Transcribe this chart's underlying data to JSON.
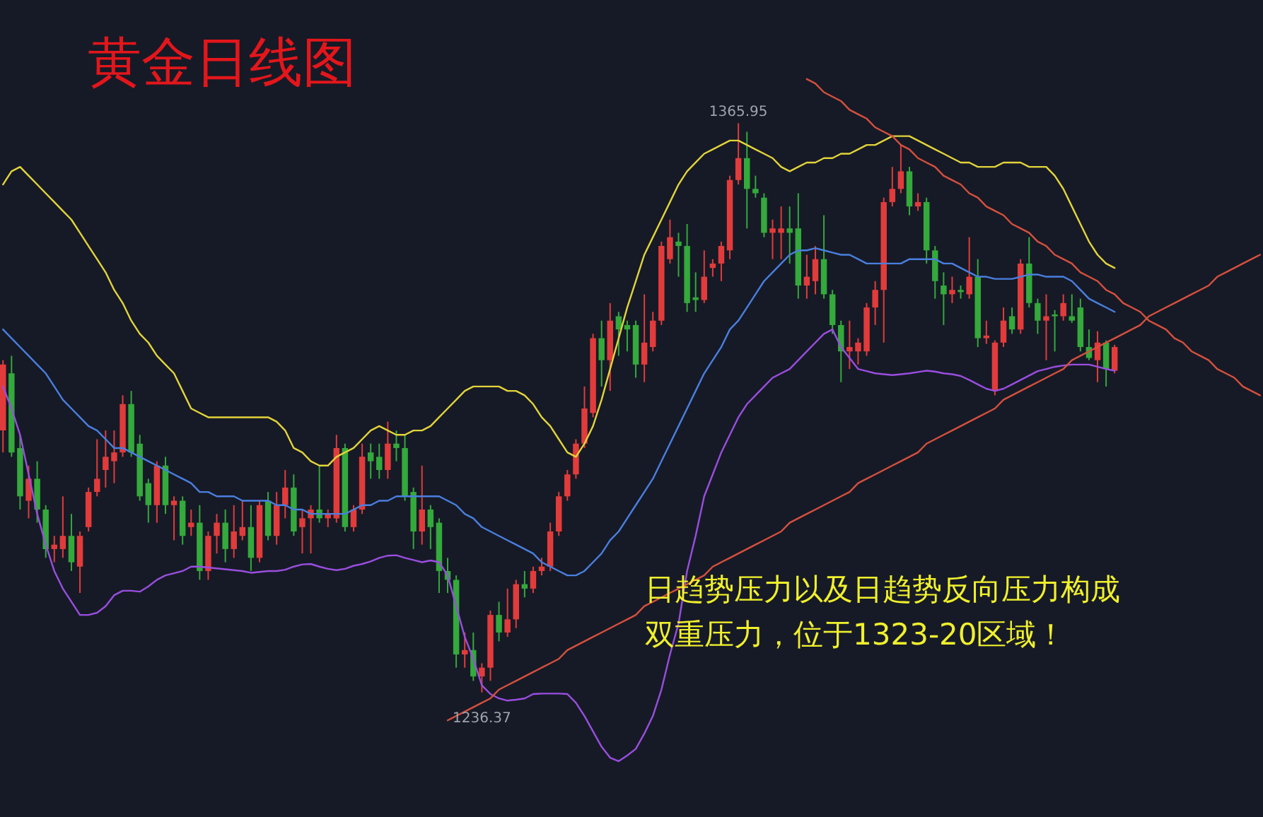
{
  "chart_data": {
    "type": "candlestick",
    "title": "黄金日线图",
    "categories": [
      null,
      null,
      null,
      null,
      null,
      null,
      null,
      null,
      null,
      null,
      null,
      null,
      null,
      null,
      null,
      null,
      null,
      null,
      null,
      null,
      null,
      null,
      null,
      null,
      null,
      null,
      null,
      null,
      null,
      null,
      null,
      null,
      null,
      null,
      null,
      null,
      null,
      null,
      null,
      null,
      null,
      null,
      null,
      null,
      null,
      null,
      null,
      null,
      null,
      null,
      null,
      null,
      null,
      null,
      null,
      null,
      null,
      null,
      null,
      null,
      null,
      null,
      null,
      null,
      null,
      null,
      null,
      null,
      null,
      null,
      null,
      null,
      null,
      null,
      null,
      null,
      null,
      null,
      null,
      null,
      null,
      null,
      null,
      null,
      null,
      null,
      null,
      null,
      null,
      null,
      null,
      null,
      null,
      null,
      null,
      null,
      null,
      null,
      null,
      null,
      null,
      null,
      null,
      null,
      null,
      null,
      null,
      null,
      null,
      null,
      null,
      null,
      null,
      null,
      null,
      null,
      null,
      null,
      null,
      null,
      null,
      null,
      null,
      null,
      null,
      null,
      null,
      null,
      null,
      null,
      null,
      null,
      null,
      null,
      null,
      null,
      null,
      null,
      null,
      null,
      null,
      null,
      null,
      null,
      null,
      null,
      null,
      null
    ],
    "ohlc": [
      [
        1296,
        1312,
        1291,
        1311
      ],
      [
        1309,
        1313,
        1290,
        1291
      ],
      [
        1292,
        1295,
        1278,
        1281
      ],
      [
        1280,
        1288,
        1276,
        1285
      ],
      [
        1285,
        1289,
        1275,
        1278
      ],
      [
        1278,
        1279,
        1267,
        1269
      ],
      [
        1269,
        1272,
        1266,
        1270
      ],
      [
        1269,
        1281,
        1267,
        1272
      ],
      [
        1272,
        1277,
        1264,
        1266
      ],
      [
        1265,
        1273,
        1259,
        1272
      ],
      [
        1274,
        1283,
        1273,
        1282
      ],
      [
        1282,
        1294,
        1281,
        1285
      ],
      [
        1287,
        1296,
        1283,
        1290
      ],
      [
        1289,
        1296,
        1284,
        1291
      ],
      [
        1291,
        1304,
        1290,
        1302
      ],
      [
        1302,
        1305,
        1290,
        1291
      ],
      [
        1293,
        1295,
        1280,
        1281
      ],
      [
        1284,
        1285,
        1275,
        1279
      ],
      [
        1279,
        1289,
        1275,
        1288
      ],
      [
        1288,
        1290,
        1277,
        1279
      ],
      [
        1279,
        1281,
        1271,
        1280
      ],
      [
        1280,
        1281,
        1270,
        1272
      ],
      [
        1274,
        1278,
        1272,
        1275
      ],
      [
        1275,
        1279,
        1262,
        1264
      ],
      [
        1264,
        1273,
        1262,
        1272
      ],
      [
        1272,
        1277,
        1268,
        1275
      ],
      [
        1275,
        1278,
        1266,
        1269
      ],
      [
        1269,
        1279,
        1267,
        1273
      ],
      [
        1272,
        1280,
        1271,
        1274
      ],
      [
        1274,
        1279,
        1264,
        1267
      ],
      [
        1267,
        1280,
        1266,
        1279
      ],
      [
        1280,
        1282,
        1271,
        1272
      ],
      [
        1272,
        1282,
        1270,
        1279
      ],
      [
        1279,
        1287,
        1276,
        1283
      ],
      [
        1283,
        1286,
        1272,
        1273
      ],
      [
        1274,
        1278,
        1268,
        1276
      ],
      [
        1276,
        1279,
        1268,
        1278
      ],
      [
        1278,
        1288,
        1275,
        1276
      ],
      [
        1276,
        1278,
        1274,
        1277
      ],
      [
        1276,
        1295,
        1275,
        1292
      ],
      [
        1292,
        1293,
        1273,
        1274
      ],
      [
        1274,
        1279,
        1273,
        1278
      ],
      [
        1278,
        1293,
        1277,
        1290
      ],
      [
        1291,
        1293,
        1285,
        1289
      ],
      [
        1290,
        1293,
        1285,
        1287
      ],
      [
        1287,
        1298,
        1285,
        1293
      ],
      [
        1293,
        1296,
        1289,
        1292
      ],
      [
        1292,
        1295,
        1280,
        1281
      ],
      [
        1282,
        1283,
        1269,
        1273
      ],
      [
        1273,
        1288,
        1270,
        1278
      ],
      [
        1278,
        1279,
        1269,
        1274
      ],
      [
        1275,
        1276,
        1259,
        1264
      ],
      [
        1264,
        1267,
        1259,
        1262
      ],
      [
        1262,
        1263,
        1242,
        1245
      ],
      [
        1245,
        1250,
        1242,
        1246
      ],
      [
        1246,
        1250,
        1239,
        1240
      ],
      [
        1240,
        1243,
        1236.37,
        1242
      ],
      [
        1242,
        1255,
        1239,
        1254
      ],
      [
        1254,
        1257,
        1248,
        1250
      ],
      [
        1250,
        1260,
        1249,
        1253
      ],
      [
        1253,
        1262,
        1251,
        1261
      ],
      [
        1261,
        1264,
        1258,
        1260
      ],
      [
        1260,
        1265,
        1259,
        1264
      ],
      [
        1264,
        1267,
        1263,
        1265
      ],
      [
        1265,
        1275,
        1264,
        1273
      ],
      [
        1273,
        1282,
        1272,
        1281
      ],
      [
        1281,
        1287,
        1280,
        1286
      ],
      [
        1286,
        1294,
        1285,
        1293
      ],
      [
        1293,
        1306,
        1292,
        1301
      ],
      [
        1300,
        1318,
        1299,
        1317
      ],
      [
        1317,
        1321,
        1306,
        1312
      ],
      [
        1312,
        1325,
        1305,
        1321
      ],
      [
        1322,
        1323,
        1313,
        1319
      ],
      [
        1320,
        1321,
        1314,
        1319
      ],
      [
        1320,
        1321,
        1308,
        1311
      ],
      [
        1311,
        1327,
        1307,
        1316
      ],
      [
        1315,
        1323,
        1314,
        1321
      ],
      [
        1321,
        1339,
        1320,
        1338
      ],
      [
        1335,
        1344,
        1334,
        1340
      ],
      [
        1339,
        1341,
        1331,
        1338
      ],
      [
        1338,
        1343,
        1323,
        1325
      ],
      [
        1326.3,
        1332,
        1323,
        1325.7
      ],
      [
        1325.7,
        1337,
        1325,
        1331
      ],
      [
        1333,
        1335,
        1331,
        1334
      ],
      [
        1334,
        1339,
        1330,
        1338
      ],
      [
        1337,
        1354,
        1335,
        1353
      ],
      [
        1353,
        1365.95,
        1352,
        1358
      ],
      [
        1358,
        1364,
        1342,
        1351
      ],
      [
        1351,
        1354,
        1349,
        1350
      ],
      [
        1349,
        1350,
        1340,
        1341
      ],
      [
        1341,
        1344,
        1335,
        1342
      ],
      [
        1341,
        1347,
        1335,
        1342
      ],
      [
        1342,
        1347,
        1334,
        1341
      ],
      [
        1342,
        1350,
        1326,
        1329
      ],
      [
        1329,
        1336,
        1326,
        1331
      ],
      [
        1330,
        1338,
        1327,
        1335
      ],
      [
        1335,
        1345,
        1326,
        1327
      ],
      [
        1327,
        1328,
        1318,
        1320
      ],
      [
        1320,
        1321,
        1307,
        1314
      ],
      [
        1314,
        1321,
        1310,
        1315
      ],
      [
        1314,
        1317,
        1311,
        1316
      ],
      [
        1314,
        1325,
        1313,
        1324
      ],
      [
        1324,
        1330,
        1320,
        1328
      ],
      [
        1328,
        1349,
        1316,
        1348
      ],
      [
        1348,
        1356,
        1347,
        1351
      ],
      [
        1351,
        1361,
        1350,
        1355
      ],
      [
        1355,
        1356,
        1345,
        1347
      ],
      [
        1347,
        1350,
        1346,
        1348
      ],
      [
        1348,
        1349,
        1334,
        1337
      ],
      [
        1337,
        1338,
        1326,
        1330
      ],
      [
        1329,
        1332,
        1320,
        1327
      ],
      [
        1327,
        1331,
        1325,
        1328
      ],
      [
        1328,
        1329,
        1326,
        1327.5
      ],
      [
        1327,
        1340,
        1326,
        1331
      ],
      [
        1331,
        1335,
        1315,
        1317
      ],
      [
        1317,
        1321,
        1315.7,
        1317.6
      ],
      [
        1305,
        1316.5,
        1304,
        1316
      ],
      [
        1316,
        1324,
        1315,
        1321
      ],
      [
        1322,
        1324,
        1318,
        1319
      ],
      [
        1319,
        1335,
        1318,
        1334
      ],
      [
        1334,
        1340,
        1324,
        1325
      ],
      [
        1325,
        1326,
        1318,
        1321
      ],
      [
        1321,
        1327,
        1312,
        1322
      ],
      [
        1322.4,
        1323.4,
        1314,
        1322
      ],
      [
        1322,
        1327,
        1321,
        1325
      ],
      [
        1322,
        1327,
        1320.5,
        1321
      ],
      [
        1324,
        1326,
        1314,
        1315
      ],
      [
        1315,
        1319,
        1312,
        1312.5
      ],
      [
        1312,
        1318.6,
        1307,
        1316
      ],
      [
        1316,
        1316.5,
        1306,
        1310
      ],
      [
        1309.6,
        1315.5,
        1309,
        1315
      ],
      null,
      null,
      null,
      null,
      null,
      null,
      null,
      null,
      null,
      null,
      null,
      null,
      null,
      null,
      null,
      null,
      null
    ],
    "colors": [
      "#e23b3b",
      "#34a93c",
      "#34a93c",
      "#e23b3b",
      "#34a93c",
      "#34a93c",
      "#e23b3b",
      "#e23b3b",
      "#34a93c",
      "#e23b3b",
      "#e23b3b",
      "#e23b3b",
      "#e23b3b",
      "#e23b3b",
      "#e23b3b",
      "#34a93c",
      "#34a93c",
      "#34a93c",
      "#e23b3b",
      "#34a93c",
      "#e23b3b",
      "#34a93c",
      "#e23b3b",
      "#34a93c",
      "#e23b3b",
      "#e23b3b",
      "#34a93c",
      "#e23b3b",
      "#e23b3b",
      "#34a93c",
      "#e23b3b",
      "#34a93c",
      "#e23b3b",
      "#e23b3b",
      "#34a93c",
      "#e23b3b",
      "#e23b3b",
      "#34a93c",
      "#e23b3b",
      "#e23b3b",
      "#34a93c",
      "#e23b3b",
      "#e23b3b",
      "#34a93c",
      "#34a93c",
      "#e23b3b",
      "#34a93c",
      "#34a93c",
      "#34a93c",
      "#e23b3b",
      "#34a93c",
      "#34a93c",
      "#34a93c",
      "#34a93c",
      "#e23b3b",
      "#34a93c",
      "#e23b3b",
      "#e23b3b",
      "#34a93c",
      "#e23b3b",
      "#e23b3b",
      "#34a93c",
      "#e23b3b",
      "#e23b3b",
      "#e23b3b",
      "#e23b3b",
      "#e23b3b",
      "#e23b3b",
      "#e23b3b",
      "#e23b3b",
      "#34a93c",
      "#e23b3b",
      "#34a93c",
      "#34a93c",
      "#34a93c",
      "#e23b3b",
      "#e23b3b",
      "#e23b3b",
      "#e23b3b",
      "#34a93c",
      "#34a93c",
      "#34a93c",
      "#e23b3b",
      "#e23b3b",
      "#e23b3b",
      "#e23b3b",
      "#e23b3b",
      "#34a93c",
      "#34a93c",
      "#34a93c",
      "#e23b3b",
      "#e23b3b",
      "#34a93c",
      "#34a93c",
      "#e23b3b",
      "#e23b3b",
      "#34a93c",
      "#34a93c",
      "#34a93c",
      "#e23b3b",
      "#e23b3b",
      "#e23b3b",
      "#e23b3b",
      "#e23b3b",
      "#e23b3b",
      "#e23b3b",
      "#34a93c",
      "#e23b3b",
      "#34a93c",
      "#34a93c",
      "#34a93c",
      "#e23b3b",
      "#34a93c",
      "#e23b3b",
      "#34a93c",
      "#e23b3b",
      "#e23b3b",
      "#e23b3b",
      "#34a93c",
      "#e23b3b",
      "#34a93c",
      "#34a93c",
      "#e23b3b",
      "#34a93c",
      "#e23b3b",
      "#34a93c",
      "#34a93c",
      "#34a93c",
      "#e23b3b",
      "#34a93c",
      "#e23b3b",
      null,
      null,
      null,
      null,
      null,
      null,
      null,
      null,
      null,
      null,
      null,
      null,
      null,
      null,
      null,
      null,
      null
    ],
    "ylim": [
      1208,
      1394
    ],
    "tick_labels": false,
    "series": [
      {
        "type": "line",
        "color": "#e3d43a",
        "values": [
          1352,
          1355,
          1356,
          1354,
          1352,
          1350,
          1348,
          1346,
          1344,
          1341,
          1338,
          1335,
          1332,
          1328,
          1325,
          1321,
          1318,
          1316,
          1313,
          1311,
          1309,
          1305,
          1301,
          1300,
          1299,
          1299,
          1299,
          1299,
          1299,
          1299,
          1299,
          1299,
          1298,
          1296,
          1292,
          1291,
          1289,
          1288,
          1288,
          1290,
          1291,
          1292,
          1294,
          1296,
          1297,
          1296,
          1295,
          1295,
          1296,
          1296,
          1297,
          1299,
          1301,
          1303,
          1305,
          1306,
          1306,
          1306,
          1306,
          1305,
          1305,
          1304,
          1302,
          1299,
          1297,
          1294,
          1291,
          1290,
          1293,
          1297,
          1303,
          1310,
          1317,
          1324,
          1330,
          1336,
          1340,
          1344,
          1348,
          1352,
          1355,
          1357,
          1359,
          1360,
          1361,
          1362,
          1362,
          1361,
          1360,
          1359,
          1358,
          1356,
          1355,
          1356,
          1357,
          1357,
          1358,
          1358,
          1359,
          1359,
          1360,
          1361,
          1361,
          1362,
          1363,
          1363,
          1363,
          1362,
          1361,
          1360,
          1359,
          1358,
          1357,
          1357,
          1356,
          1356,
          1356,
          1357,
          1357,
          1357,
          1356,
          1356,
          1356,
          1354,
          1351,
          1347,
          1343,
          1339,
          1336,
          1334,
          1333,
          null,
          null,
          null,
          null,
          null,
          null,
          null,
          null,
          null,
          null,
          null,
          null,
          null,
          null,
          null,
          null,
          null
        ]
      },
      {
        "type": "line",
        "color": "#4a7fe0",
        "values": [
          1319,
          1317,
          1315,
          1313,
          1311,
          1309,
          1306,
          1303,
          1301,
          1299,
          1297,
          1296,
          1294,
          1292,
          1292,
          1291,
          1290,
          1289,
          1288,
          1287,
          1286,
          1285,
          1284,
          1282,
          1282,
          1281,
          1281,
          1281,
          1280,
          1280,
          1280,
          1280,
          1279,
          1279,
          1278,
          1278,
          1277,
          1277,
          1277,
          1277,
          1277,
          1278,
          1279,
          1279,
          1280,
          1280,
          1281,
          1281,
          1281,
          1281,
          1281,
          1281,
          1280,
          1279,
          1277,
          1276,
          1274,
          1273,
          1272,
          1271,
          1270,
          1269,
          1268,
          1266,
          1265,
          1264,
          1263,
          1263,
          1264,
          1266,
          1268,
          1271,
          1273,
          1276,
          1279,
          1282,
          1285,
          1289,
          1293,
          1297,
          1301,
          1305,
          1309,
          1312,
          1315,
          1319,
          1321,
          1324,
          1327,
          1330,
          1332,
          1334,
          1336,
          1337,
          1337,
          1337.5,
          1337,
          1336.5,
          1336,
          1336,
          1335,
          1334,
          1334,
          1334,
          1334,
          1334,
          1335,
          1335,
          1335,
          1335,
          1334,
          1334,
          1333,
          1332,
          1331,
          1331,
          1330.5,
          1330.5,
          1330.5,
          1331,
          1331.5,
          1331.5,
          1331,
          1331,
          1331,
          1330,
          1328,
          1326,
          1325,
          1324,
          1323,
          null,
          null,
          null,
          null,
          null,
          null,
          null,
          null,
          null,
          null,
          null,
          null,
          null,
          null,
          null,
          null,
          null
        ]
      },
      {
        "type": "line",
        "color": "#9a4ee0",
        "values": [
          1306,
          1301,
          1295,
          1286,
          1277,
          1270,
          1264,
          1260,
          1257,
          1254,
          1254,
          1254.5,
          1256,
          1258.5,
          1259.5,
          1259.5,
          1259.3,
          1260.5,
          1262,
          1263,
          1263.5,
          1264,
          1265,
          1265,
          1264.8,
          1264.6,
          1264.4,
          1264.2,
          1264,
          1263.6,
          1263.8,
          1264,
          1264,
          1264.3,
          1265,
          1265.5,
          1265.6,
          1265,
          1264.5,
          1264.2,
          1264.5,
          1265.2,
          1265.6,
          1266.2,
          1267,
          1267.5,
          1267.6,
          1267,
          1266.5,
          1266,
          1266.4,
          1266,
          1263,
          1256,
          1249,
          1244,
          1238,
          1236,
          1235,
          1234.5,
          1234.7,
          1235,
          1236,
          1236.1,
          1236.1,
          1236.1,
          1236,
          1234,
          1231,
          1227.5,
          1224,
          1221.5,
          1220.7,
          1222,
          1223.5,
          1227,
          1231,
          1237,
          1245,
          1252,
          1264,
          1272,
          1281,
          1286,
          1291,
          1295,
          1299,
          1302,
          1304,
          1306,
          1308,
          1309,
          1310,
          1312,
          1314,
          1316,
          1318,
          1319,
          1315,
          1312.5,
          1310,
          1309.5,
          1309,
          1308.8,
          1308.6,
          1308.8,
          1309,
          1309.3,
          1309.6,
          1309.4,
          1309,
          1308.8,
          1308.4,
          1307.5,
          1306.5,
          1305.5,
          1305,
          1305.5,
          1306.5,
          1307.5,
          1308.5,
          1309.5,
          1310,
          1310.5,
          1310.8,
          1311,
          1311,
          1311,
          1310.5,
          1310,
          1309.6,
          null,
          null,
          null,
          null,
          null,
          null,
          null,
          null,
          null,
          null,
          null,
          null,
          null,
          null,
          null,
          null,
          null
        ]
      },
      {
        "type": "line",
        "color": "#d6503e",
        "values": [
          null,
          null,
          null,
          null,
          null,
          null,
          null,
          null,
          null,
          null,
          null,
          null,
          null,
          null,
          null,
          null,
          null,
          null,
          null,
          null,
          null,
          null,
          null,
          null,
          null,
          null,
          null,
          null,
          null,
          null,
          null,
          null,
          null,
          null,
          null,
          null,
          null,
          null,
          null,
          null,
          null,
          null,
          null,
          null,
          null,
          null,
          null,
          null,
          null,
          null,
          null,
          null,
          1230,
          1231,
          1232,
          1233,
          1234,
          1235,
          1237,
          1238,
          1239,
          1240,
          1241,
          1242,
          1243,
          1244,
          1246,
          1247,
          1248,
          1249,
          1250,
          1251,
          1252,
          1253,
          1254,
          1256,
          1257,
          1258,
          1259,
          1260,
          1261,
          1262,
          1263,
          1265,
          1266,
          1267,
          1268,
          1269,
          1270,
          1271,
          1272,
          1273,
          1275,
          1276,
          1277,
          1278,
          1279,
          1280,
          1281,
          1282,
          1284,
          1285,
          1286,
          1287,
          1288,
          1289,
          1290,
          1291,
          1293,
          1294,
          1295,
          1296,
          1297,
          1298,
          1299,
          1300,
          1301,
          1303,
          1304,
          1305,
          1306,
          1307,
          1308,
          1309,
          1310,
          1312,
          1313,
          1314,
          1315,
          1316,
          1317,
          1318,
          1319,
          1320,
          1322,
          1323,
          1324,
          1325,
          1326,
          1327,
          1328,
          1329,
          1331,
          1332,
          1333,
          1334,
          1335,
          1336
        ]
      },
      {
        "type": "line",
        "color": "#d6503e",
        "values": [
          null,
          null,
          null,
          null,
          null,
          null,
          null,
          null,
          null,
          null,
          null,
          null,
          null,
          null,
          null,
          null,
          null,
          null,
          null,
          null,
          null,
          null,
          null,
          null,
          null,
          null,
          null,
          null,
          null,
          null,
          null,
          null,
          null,
          null,
          null,
          null,
          null,
          null,
          null,
          null,
          null,
          null,
          null,
          null,
          null,
          null,
          null,
          null,
          null,
          null,
          null,
          null,
          null,
          null,
          null,
          null,
          null,
          null,
          null,
          null,
          null,
          null,
          null,
          null,
          null,
          null,
          null,
          null,
          null,
          null,
          null,
          null,
          null,
          null,
          null,
          null,
          null,
          null,
          null,
          null,
          null,
          null,
          null,
          null,
          null,
          null,
          null,
          null,
          null,
          null,
          null,
          null,
          null,
          null,
          1376,
          1375,
          1373,
          1372,
          1371,
          1369,
          1368,
          1367,
          1365,
          1364,
          1363,
          1361,
          1360,
          1358,
          1357,
          1356,
          1354,
          1353,
          1352,
          1350,
          1349,
          1347,
          1346,
          1345,
          1343,
          1342,
          1341,
          1339,
          1338,
          1336,
          1335,
          1334,
          1332,
          1331,
          1330,
          1328,
          1327,
          1325,
          1324,
          1323,
          1321,
          1320,
          1319,
          1317,
          1316,
          1314,
          1313,
          1312,
          1310,
          1309,
          1308,
          1306,
          1305,
          1304
        ]
      }
    ],
    "annotations": [
      {
        "text": "1365.95",
        "y": 1365.95
      },
      {
        "text": "1236.37",
        "y": 1236.37
      },
      "日趋势压力以及日趋势反向压力构成",
      "双重压力，位于1323-20区域！"
    ]
  }
}
